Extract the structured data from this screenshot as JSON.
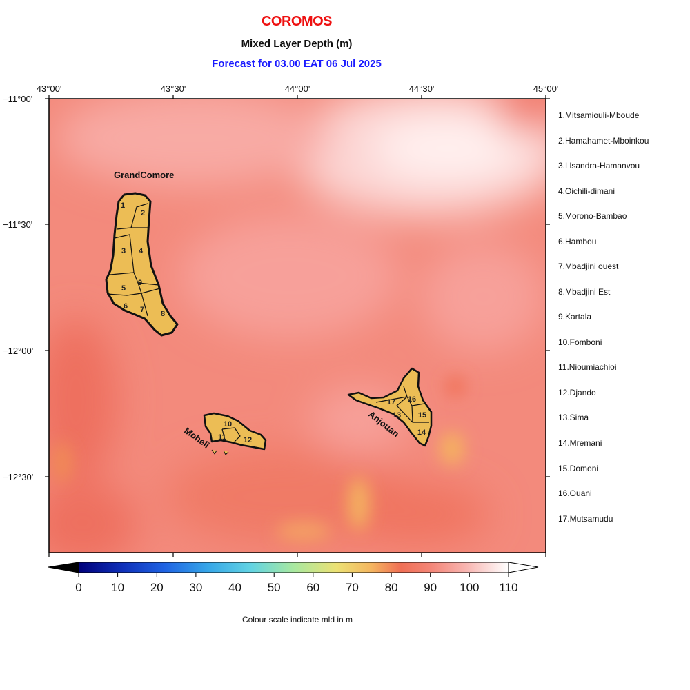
{
  "header": {
    "country": "COROMOS",
    "variable": "Mixed Layer Depth (m)",
    "forecast": "Forecast for  03.00 EAT 06 Jul 2025"
  },
  "axes": {
    "lon_ticks": [
      "43°00'",
      "43°30'",
      "44°00'",
      "44°30'",
      "45°00'"
    ],
    "lat_ticks": [
      "−11°00'",
      "−11°30'",
      "−12°00'",
      "−12°30'"
    ]
  },
  "islands": {
    "grand_comore": "GrandComore",
    "moheli": "Moheli",
    "anjouan": "Anjouan"
  },
  "regions": [
    "1.Mitsamiouli-Mboude",
    "2.Hamahamet-Mboinkou",
    "3.Llsandra-Hamanvou",
    "4.Oichili-dimani",
    "5.Morono-Bambao",
    "6.Hambou",
    "7.Mbadjini ouest",
    "8.Mbadjini Est",
    "9.Kartala",
    "10.Fomboni",
    "11.Nioumiachioi",
    "12.Djando",
    "13.Sima",
    "14.Mremani",
    "15.Domoni",
    "16.Ouani",
    "17.Mutsamudu"
  ],
  "region_numbers": [
    "1",
    "2",
    "3",
    "4",
    "5",
    "6",
    "7",
    "8",
    "9",
    "10",
    "11",
    "12",
    "13",
    "14",
    "15",
    "16",
    "17"
  ],
  "colorbar": {
    "ticks": [
      "0",
      "10",
      "20",
      "30",
      "40",
      "50",
      "60",
      "70",
      "80",
      "90",
      "100",
      "110"
    ],
    "label": "Colour scale indicate mld in m"
  },
  "colors": {
    "title": "#ee1111",
    "forecast": "#1a1aff",
    "field_base": "#f38a7c",
    "land": "#ecbd55"
  }
}
